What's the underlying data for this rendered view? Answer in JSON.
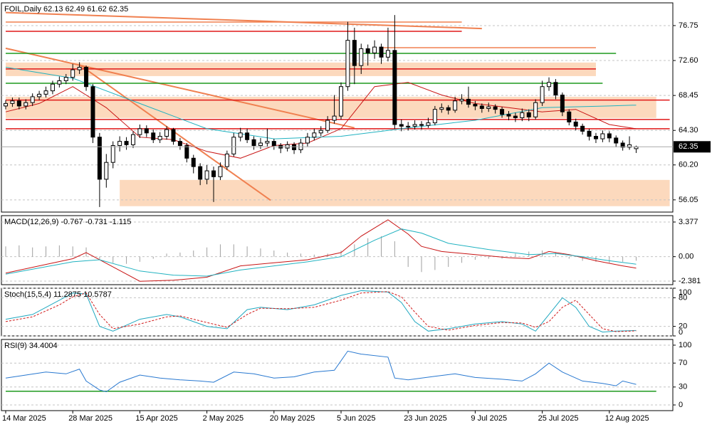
{
  "chart_data": [
    {
      "type": "candlestick",
      "title": "FOIL,Daily  62.13 62.49 61.62 62.35",
      "open": [
        67.2,
        67.5,
        67.8,
        67.2,
        67.6,
        68.3,
        68.6,
        69.0,
        69.8,
        70.2,
        70.6,
        71.5,
        71.8,
        69.5,
        63.5,
        58.5,
        60.5,
        62.5,
        63.0,
        62.6,
        63.8,
        64.5,
        64.0,
        63.2,
        63.6,
        64.4,
        63.0,
        62.5,
        61.0,
        60.0,
        58.5,
        59.5,
        58.8,
        60.0,
        61.5,
        63.5,
        64.0,
        63.2,
        62.5,
        62.8,
        63.0,
        62.5,
        62.2,
        62.6,
        62.0,
        62.8,
        63.5,
        64.0,
        64.3,
        65.5,
        66.0,
        69.5,
        75.0,
        72.0,
        74.0,
        73.5,
        74.2,
        73.0,
        73.8,
        65.0,
        64.8,
        64.8,
        65.0,
        64.9,
        65.2,
        66.8,
        67.0,
        66.7,
        67.8,
        68.0,
        67.4,
        67.2,
        66.9,
        67.1,
        66.8,
        66.2,
        66.0,
        65.8,
        66.4,
        65.9,
        67.6,
        69.5,
        70.0,
        68.5,
        66.5,
        65.3,
        64.8,
        64.2,
        63.6,
        63.3,
        63.9,
        63.4,
        62.8,
        62.3,
        62.13
      ],
      "high": [
        67.9,
        68.2,
        68.2,
        68.0,
        68.7,
        69.0,
        69.5,
        70.2,
        70.7,
        71.0,
        72.2,
        72.4,
        72.0,
        69.8,
        64.0,
        61.5,
        63.0,
        63.6,
        63.5,
        64.2,
        65.0,
        64.9,
        64.4,
        64.1,
        64.8,
        64.6,
        63.4,
        62.8,
        61.4,
        60.4,
        60.2,
        60.0,
        60.5,
        61.9,
        64.0,
        64.6,
        64.5,
        63.6,
        63.4,
        64.5,
        63.3,
        62.8,
        63.0,
        62.9,
        63.3,
        64.0,
        64.5,
        64.8,
        66.0,
        68.5,
        70.0,
        77.2,
        76.5,
        74.6,
        74.5,
        75.0,
        74.6,
        76.5,
        78.0,
        65.6,
        65.3,
        65.5,
        65.4,
        65.8,
        67.2,
        67.5,
        67.3,
        68.3,
        68.6,
        69.5,
        67.8,
        67.5,
        67.6,
        67.4,
        67.1,
        66.6,
        66.4,
        66.9,
        66.8,
        68.0,
        70.2,
        70.6,
        70.4,
        68.8,
        66.8,
        65.7,
        65.1,
        64.5,
        64.0,
        64.3,
        64.2,
        63.7,
        63.1,
        63.6,
        62.49
      ],
      "low": [
        66.8,
        67.1,
        66.8,
        66.8,
        67.2,
        67.9,
        68.2,
        68.6,
        69.4,
        69.8,
        70.2,
        71.0,
        69.0,
        62.8,
        55.2,
        57.5,
        59.8,
        61.8,
        62.0,
        62.2,
        63.4,
        63.5,
        62.8,
        62.8,
        63.2,
        62.6,
        62.0,
        60.5,
        59.2,
        57.8,
        57.9,
        55.8,
        58.4,
        59.6,
        61.2,
        63.0,
        62.8,
        62.0,
        62.1,
        62.4,
        62.0,
        61.6,
        61.8,
        61.5,
        61.6,
        62.4,
        63.1,
        63.6,
        64.0,
        65.1,
        65.6,
        69.0,
        69.8,
        71.0,
        72.0,
        72.8,
        72.2,
        72.5,
        64.5,
        64.2,
        64.3,
        64.4,
        64.4,
        64.6,
        64.9,
        66.4,
        66.2,
        66.4,
        67.4,
        67.0,
        66.7,
        66.4,
        66.5,
        66.3,
        65.8,
        65.5,
        65.3,
        65.4,
        65.4,
        65.6,
        67.2,
        69.0,
        68.0,
        66.0,
        64.9,
        64.3,
        63.8,
        63.1,
        62.8,
        62.9,
        62.9,
        62.3,
        61.9,
        62.0,
        61.62
      ],
      "close": [
        67.5,
        67.8,
        67.2,
        67.6,
        68.3,
        68.6,
        69.0,
        69.8,
        70.2,
        70.6,
        71.5,
        71.8,
        69.5,
        63.5,
        58.5,
        60.5,
        62.5,
        63.0,
        62.6,
        63.8,
        64.5,
        64.0,
        63.2,
        63.6,
        64.4,
        63.0,
        62.5,
        61.0,
        60.0,
        58.5,
        59.5,
        58.8,
        60.0,
        61.5,
        63.5,
        64.0,
        63.2,
        62.5,
        62.8,
        63.0,
        62.5,
        62.2,
        62.6,
        62.0,
        62.8,
        63.5,
        64.0,
        64.3,
        65.5,
        66.0,
        69.5,
        75.0,
        72.0,
        74.0,
        73.5,
        74.2,
        73.0,
        73.8,
        65.0,
        64.8,
        64.8,
        65.0,
        64.9,
        65.2,
        66.8,
        67.0,
        66.7,
        67.8,
        68.0,
        67.4,
        67.2,
        66.9,
        67.1,
        66.8,
        66.2,
        66.0,
        65.8,
        66.4,
        65.9,
        67.6,
        69.5,
        70.0,
        68.5,
        66.5,
        65.3,
        64.8,
        64.2,
        63.6,
        63.3,
        63.9,
        63.4,
        62.8,
        62.3,
        62.6,
        62.35
      ],
      "ylim": [
        54.6,
        79.45
      ],
      "yticks": [
        76.75,
        {
          "value": 72.6,
          "label": "72.60"
        },
        68.45,
        {
          "value": 64.3,
          "label": "64.30"
        },
        {
          "value": 60.2,
          "label": "60.20"
        },
        56.05
      ],
      "zones": [
        {
          "range": [
            70.75,
            72.36
          ],
          "x": [
            0,
            88
          ],
          "color": "#fcd9bd"
        },
        {
          "range": [
            65.77,
            68.3
          ],
          "x": [
            0,
            97
          ],
          "color": "#fcd9bd"
        },
        {
          "range": [
            55.3,
            58.42
          ],
          "x": [
            17,
            99
          ],
          "color": "#fcd9bd"
        }
      ],
      "levels": [
        {
          "value": 77.17,
          "x": [
            0,
            68
          ],
          "color": "#f08050"
        },
        {
          "value": 76.07,
          "x": [
            0,
            68
          ],
          "color": "#e01818"
        },
        {
          "value": 74.13,
          "x": [
            56,
            88
          ],
          "color": "#f08050"
        },
        {
          "value": 73.45,
          "x": [
            0,
            91
          ],
          "color": "#1e9a1e"
        },
        {
          "value": 71.6,
          "x": [
            0,
            88
          ],
          "color": "#e01818"
        },
        {
          "value": 69.9,
          "x": [
            0,
            89
          ],
          "color": "#1e9a1e"
        },
        {
          "value": 67.9,
          "x": [
            0,
            99
          ],
          "color": "#e01818"
        },
        {
          "value": 65.6,
          "x": [
            0,
            99
          ],
          "color": "#e01818"
        },
        {
          "value": 64.5,
          "x": [
            0,
            99
          ],
          "color": "#e01818"
        }
      ],
      "trendlines": [
        {
          "x": [
            0,
            52
          ],
          "values": [
            74.05,
            64.6
          ],
          "color": "#f08050"
        },
        {
          "x": [
            11,
            39.5
          ],
          "values": [
            72.1,
            56.0
          ],
          "color": "#f08050"
        },
        {
          "x": [
            0,
            71
          ],
          "values": [
            78.3,
            76.4
          ],
          "color": "#f08050"
        }
      ],
      "series": [
        {
          "color": "#c81414",
          "x": [
            0,
            5,
            10,
            15,
            20,
            25,
            30,
            35,
            40,
            45,
            50,
            55,
            60,
            65,
            70,
            75,
            80,
            85,
            90,
            94
          ],
          "values": [
            66.5,
            67.5,
            69.5,
            67.0,
            63.5,
            63.2,
            61.8,
            61.0,
            62.5,
            62.8,
            64.5,
            69.5,
            70.0,
            68.5,
            67.5,
            67.0,
            66.5,
            66.8,
            65.0,
            64.5
          ]
        },
        {
          "color": "#20b2c0",
          "x": [
            0,
            10,
            20,
            30,
            40,
            50,
            60,
            70,
            80,
            90,
            94
          ],
          "values": [
            71.8,
            70.5,
            67.5,
            64.5,
            63.3,
            63.6,
            64.6,
            65.5,
            67.0,
            67.2,
            67.3
          ]
        }
      ]
    },
    {
      "type": "bar",
      "title": "MACD(12,26,9) -0.767 -0.731 -1.115",
      "ylim": [
        -2.73,
        4.0
      ],
      "yticks": [
        3.377,
        {
          "value": 0,
          "label": "0.00"
        },
        -2.381
      ],
      "histogram": {
        "color": "#a0a0a0",
        "x": [
          0,
          2,
          4,
          6,
          8,
          10,
          12,
          14,
          16,
          18,
          20,
          22,
          24,
          26,
          28,
          30,
          32,
          34,
          36,
          38,
          40,
          42,
          44,
          46,
          48,
          50,
          52,
          54,
          56,
          58,
          60,
          62,
          64,
          66,
          68,
          70,
          72,
          74,
          76,
          78,
          80,
          82,
          84,
          86,
          88,
          90,
          92,
          94
        ],
        "values": [
          1.0,
          1.1,
          0.9,
          1.0,
          1.1,
          1.0,
          0.9,
          -0.3,
          -0.6,
          -0.7,
          -0.5,
          -0.2,
          0.3,
          0.4,
          0.6,
          0.9,
          1.2,
          1.2,
          1.0,
          0.8,
          0.6,
          0.4,
          0.3,
          0.2,
          0.3,
          0.6,
          1.2,
          1.8,
          2.0,
          1.5,
          -1.0,
          -1.5,
          -1.3,
          -1.0,
          -0.6,
          -0.3,
          -0.2,
          -0.2,
          0.3,
          0.5,
          0.6,
          0.4,
          -0.2,
          -0.4,
          -0.5,
          -0.6,
          -0.5,
          -0.4
        ]
      },
      "series": [
        {
          "color": "#c81414",
          "x": [
            0,
            10,
            12,
            20,
            25,
            30,
            35,
            40,
            45,
            50,
            53,
            57,
            60,
            62,
            65,
            70,
            75,
            78,
            81,
            84,
            88,
            92,
            94
          ],
          "values": [
            -1.6,
            -0.2,
            0.4,
            -2.4,
            -2.3,
            -2.0,
            -0.9,
            -0.6,
            -0.3,
            0.4,
            2.0,
            3.6,
            2.2,
            1.0,
            0.5,
            0.2,
            -0.1,
            -0.2,
            0.5,
            0.2,
            -0.4,
            -0.9,
            -1.115
          ]
        },
        {
          "color": "#20b2c0",
          "x": [
            0,
            10,
            14,
            20,
            25,
            30,
            35,
            40,
            45,
            50,
            55,
            59,
            62,
            66,
            72,
            78,
            82,
            86,
            90,
            94
          ],
          "values": [
            -1.7,
            -0.5,
            -0.3,
            -1.4,
            -1.8,
            -1.9,
            -1.3,
            -0.9,
            -0.5,
            0.0,
            1.6,
            2.7,
            2.3,
            1.3,
            0.7,
            0.2,
            0.3,
            0.0,
            -0.4,
            -0.731
          ]
        }
      ]
    },
    {
      "type": "line",
      "title": "Stoch(15,5,4) 11.2875 10.5787",
      "ylim": [
        0,
        100
      ],
      "yticks": [
        100,
        80,
        20,
        0
      ],
      "dashed_ticks": [
        1,
        2
      ],
      "series": [
        {
          "color": "#20a8c0",
          "x": [
            0,
            4,
            8,
            10,
            12,
            14,
            16,
            20,
            24,
            26,
            30,
            33,
            36,
            38,
            42,
            46,
            50,
            53,
            57,
            59,
            61,
            63,
            66,
            70,
            74,
            77,
            79,
            81,
            83,
            85,
            87,
            89,
            91,
            94
          ],
          "values": [
            35,
            45,
            75,
            90,
            88,
            20,
            10,
            35,
            45,
            40,
            20,
            15,
            55,
            60,
            55,
            65,
            85,
            95,
            92,
            70,
            30,
            10,
            15,
            25,
            30,
            25,
            10,
            45,
            80,
            60,
            20,
            8,
            10,
            11.2875
          ]
        },
        {
          "color": "#d01818",
          "dash": true,
          "x": [
            0,
            4,
            8,
            10,
            12,
            14,
            16,
            20,
            24,
            26,
            30,
            33,
            36,
            38,
            42,
            46,
            50,
            53,
            57,
            59,
            61,
            63,
            66,
            70,
            74,
            77,
            79,
            81,
            83,
            85,
            87,
            89,
            91,
            94
          ],
          "values": [
            30,
            40,
            65,
            82,
            90,
            45,
            15,
            25,
            40,
            42,
            28,
            18,
            45,
            58,
            57,
            60,
            75,
            90,
            93,
            82,
            50,
            20,
            12,
            22,
            28,
            27,
            18,
            30,
            60,
            75,
            45,
            15,
            9,
            10.5787
          ]
        }
      ]
    },
    {
      "type": "line",
      "title": "RSI(9) 34.4004",
      "ylim": [
        -9.5,
        109.5
      ],
      "yticks": [
        100,
        70,
        30,
        0
      ],
      "levels": [
        {
          "value": 23,
          "x": [
            0,
            97
          ],
          "color": "#1e9a1e"
        }
      ],
      "series": [
        {
          "color": "#2878d0",
          "x": [
            0,
            3,
            6,
            9,
            11,
            12,
            14,
            15,
            17,
            20,
            23,
            26,
            29,
            31,
            34,
            37,
            40,
            43,
            46,
            49,
            51,
            53,
            57,
            58,
            60,
            64,
            67,
            70,
            74,
            77,
            79,
            81,
            83,
            86,
            89,
            91,
            92,
            94
          ],
          "values": [
            45,
            50,
            55,
            52,
            60,
            40,
            25,
            22,
            38,
            50,
            45,
            42,
            40,
            38,
            55,
            52,
            45,
            47,
            55,
            58,
            90,
            85,
            80,
            45,
            42,
            48,
            52,
            46,
            43,
            40,
            52,
            70,
            55,
            40,
            36,
            32,
            40,
            34.4004
          ]
        }
      ]
    }
  ],
  "x_labels": [
    "14 Mar 2025",
    "28 Mar 2025",
    "15 Apr 2025",
    "2 May 2025",
    "20 May 2025",
    "5 Jun 2025",
    "23 Jun 2025",
    "9 Jul 2025",
    "25 Jul 2025",
    "12 Aug 2025"
  ]
}
